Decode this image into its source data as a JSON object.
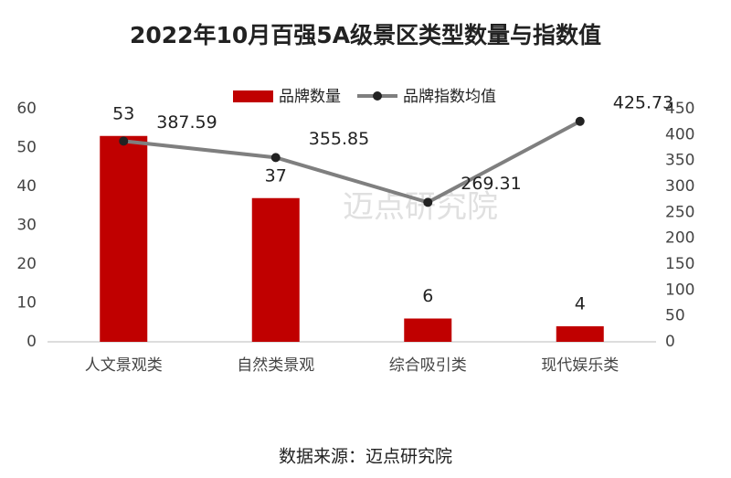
{
  "chart_data": {
    "type": "bar",
    "title": "2022年10月百强5A级景区类型数量与指数值",
    "categories": [
      "人文景观类",
      "自然类景观",
      "综合吸引类",
      "现代娱乐类"
    ],
    "series": [
      {
        "name": "品牌数量",
        "type": "bar",
        "color": "#c00000",
        "values": [
          53,
          37,
          6,
          4
        ]
      },
      {
        "name": "品牌指数均值",
        "type": "line",
        "axis": "y2",
        "color": "#7f7f7f",
        "marker_color": "#222222",
        "values": [
          387.59,
          355.85,
          269.31,
          425.73
        ]
      }
    ],
    "ylim": [
      0,
      60
    ],
    "yticks": [
      0,
      10,
      20,
      30,
      40,
      50,
      60
    ],
    "y2lim": [
      0,
      450
    ],
    "y2ticks": [
      0,
      50,
      100,
      150,
      200,
      250,
      300,
      350,
      400,
      450
    ],
    "grid": false,
    "legend": "top",
    "watermark": "迈点研究院",
    "source": "数据来源：迈点研究院"
  }
}
